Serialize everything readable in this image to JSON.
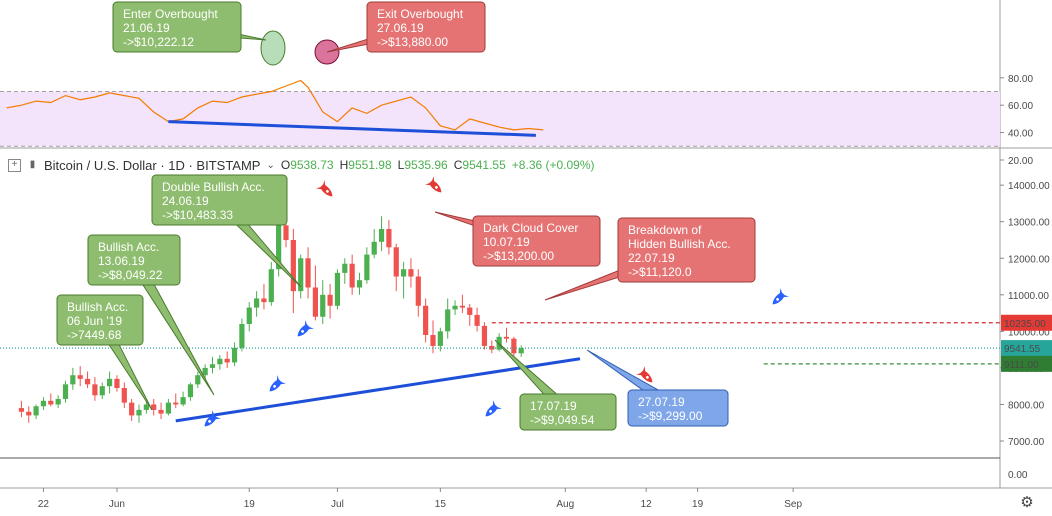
{
  "header": {
    "symbol": "Bitcoin / U.S. Dollar · 1D · BITSTAMP",
    "dropdown_icon": "chevron-down-icon",
    "o_label": "O",
    "o": "9538.73",
    "h_label": "H",
    "h": "9551.98",
    "l_label": "L",
    "l": "9535.96",
    "c_label": "C",
    "c": "9541.55",
    "change": "+8.36 (+0.09%)"
  },
  "colors": {
    "up": "#4caf50",
    "down": "#ef5350",
    "trendline": "#1e4fd8",
    "rsi_line": "#f57c00",
    "rsi_band": "#f3e3fb",
    "green_box": "#8fbd6f",
    "red_box": "#e57373",
    "blue_box": "#7ea6e8"
  },
  "chart_data": [
    {
      "type": "line",
      "title": "",
      "ylim": [
        20,
        100
      ],
      "yticks": [
        "80.00",
        "60.00",
        "40.00",
        "20.00"
      ],
      "levels": [
        70,
        30
      ],
      "series": [
        {
          "x": [
            "05-17",
            "05-19",
            "05-21",
            "05-23",
            "05-25",
            "05-27",
            "05-29",
            "05-31",
            "06-02",
            "06-04",
            "06-06",
            "06-08",
            "06-10",
            "06-12",
            "06-14",
            "06-16",
            "06-18",
            "06-20",
            "06-22",
            "06-24",
            "06-26",
            "06-27",
            "06-29",
            "07-01",
            "07-03",
            "07-05",
            "07-07",
            "07-09",
            "07-11",
            "07-13",
            "07-15",
            "07-17",
            "07-19",
            "07-21",
            "07-23",
            "07-25",
            "07-27",
            "07-29"
          ],
          "values": [
            58,
            60,
            63,
            62,
            67,
            64,
            66,
            69,
            67,
            65,
            55,
            48,
            50,
            58,
            63,
            62,
            66,
            68,
            70,
            74,
            78,
            73,
            55,
            48,
            58,
            54,
            60,
            63,
            66,
            58,
            45,
            42,
            50,
            47,
            44,
            42,
            43,
            42
          ]
        }
      ],
      "trendline": [
        {
          "x": "06-08",
          "y": 48
        },
        {
          "x": "07-28",
          "y": 38
        }
      ],
      "annotations": [
        {
          "lines": [
            "Enter Overbought",
            "21.06.19",
            "->$10,222.12"
          ],
          "color": "green"
        },
        {
          "lines": [
            "Exit Overbought",
            "27.06.19",
            "->$13,880.00"
          ],
          "color": "red"
        }
      ]
    },
    {
      "type": "candlestick",
      "title": "",
      "ylim": [
        6500,
        14500
      ],
      "yticks": [
        "14000.00",
        "13000.00",
        "12000.00",
        "11000.00",
        "10000.00",
        "9000.00",
        "8000.00",
        "7000.00"
      ],
      "xticks": [
        "22",
        "Jun",
        "19",
        "Jul",
        "15",
        "Aug",
        "12",
        "19",
        "Sep"
      ],
      "zero_tick": "0.00",
      "candles": [
        [
          7900,
          8100,
          7650,
          7800
        ],
        [
          7800,
          7950,
          7500,
          7700
        ],
        [
          7700,
          8000,
          7600,
          7950
        ],
        [
          7950,
          8200,
          7850,
          8100
        ],
        [
          8100,
          8300,
          7950,
          8000
        ],
        [
          8000,
          8250,
          7900,
          8150
        ],
        [
          8150,
          8650,
          8050,
          8550
        ],
        [
          8550,
          9000,
          8400,
          8800
        ],
        [
          8800,
          9050,
          8500,
          8700
        ],
        [
          8700,
          8900,
          8450,
          8550
        ],
        [
          8550,
          8750,
          8100,
          8250
        ],
        [
          8250,
          8600,
          8150,
          8500
        ],
        [
          8500,
          8900,
          8300,
          8700
        ],
        [
          8700,
          8800,
          8350,
          8450
        ],
        [
          8450,
          8600,
          7900,
          8050
        ],
        [
          8050,
          8150,
          7550,
          7700
        ],
        [
          7700,
          8000,
          7500,
          7850
        ],
        [
          7850,
          8100,
          7750,
          8000
        ],
        [
          8000,
          8150,
          7700,
          7850
        ],
        [
          7850,
          8050,
          7600,
          7750
        ],
        [
          7750,
          8150,
          7700,
          8050
        ],
        [
          8050,
          8300,
          7900,
          8000
        ],
        [
          8000,
          8350,
          7950,
          8200
        ],
        [
          8200,
          8600,
          8100,
          8550
        ],
        [
          8550,
          8900,
          8450,
          8800
        ],
        [
          8800,
          9100,
          8650,
          9000
        ],
        [
          9000,
          9300,
          8850,
          9100
        ],
        [
          9100,
          9350,
          8950,
          9250
        ],
        [
          9250,
          9450,
          9000,
          9150
        ],
        [
          9150,
          9700,
          9050,
          9550
        ],
        [
          9550,
          10350,
          9450,
          10200
        ],
        [
          10200,
          10800,
          10000,
          10650
        ],
        [
          10650,
          11100,
          10400,
          10900
        ],
        [
          10900,
          11300,
          10600,
          10800
        ],
        [
          10800,
          11900,
          10700,
          11700
        ],
        [
          11700,
          13200,
          11500,
          12900
        ],
        [
          12900,
          13900,
          12300,
          12500
        ],
        [
          12500,
          12800,
          10500,
          11100
        ],
        [
          11100,
          12100,
          10900,
          12000
        ],
        [
          12000,
          12300,
          10900,
          11200
        ],
        [
          11200,
          11800,
          10300,
          10400
        ],
        [
          10400,
          11400,
          10200,
          11000
        ],
        [
          11000,
          11300,
          10350,
          10700
        ],
        [
          10700,
          11700,
          10600,
          11600
        ],
        [
          11600,
          12000,
          11300,
          11850
        ],
        [
          11850,
          12100,
          11000,
          11200
        ],
        [
          11200,
          11600,
          11000,
          11400
        ],
        [
          11400,
          12300,
          11300,
          12100
        ],
        [
          12100,
          12800,
          12000,
          12450
        ],
        [
          12450,
          13150,
          12200,
          12800
        ],
        [
          12800,
          13050,
          12100,
          12300
        ],
        [
          12300,
          12400,
          11100,
          11500
        ],
        [
          11500,
          11900,
          10900,
          11700
        ],
        [
          11700,
          12000,
          11200,
          11500
        ],
        [
          11500,
          11700,
          10400,
          10700
        ],
        [
          10700,
          10900,
          9700,
          9900
        ],
        [
          9900,
          10300,
          9400,
          9600
        ],
        [
          9600,
          10100,
          9450,
          10000
        ],
        [
          10000,
          10900,
          9800,
          10600
        ],
        [
          10600,
          10850,
          10450,
          10700
        ],
        [
          10700,
          11000,
          10500,
          10650
        ],
        [
          10650,
          10750,
          10150,
          10450
        ],
        [
          10450,
          10650,
          10000,
          10150
        ],
        [
          10150,
          10250,
          9500,
          9600
        ],
        [
          9600,
          9750,
          9400,
          9500
        ],
        [
          9500,
          9950,
          9450,
          9850
        ],
        [
          9850,
          10100,
          9700,
          9800
        ],
        [
          9800,
          9850,
          9250,
          9400
        ],
        [
          9400,
          9620,
          9300,
          9540
        ]
      ],
      "levels": [
        {
          "value": 10235,
          "label": "10235.00",
          "style": "red-dashed"
        },
        {
          "value": 9541.55,
          "label": "9541.55",
          "style": "teal-dotted"
        },
        {
          "value": 9111,
          "label": "9111.00",
          "style": "green-dashed"
        }
      ],
      "trendline": [
        {
          "x": "06-09",
          "y": 7550
        },
        {
          "x": "08-03",
          "y": 9250
        }
      ],
      "annotations": [
        {
          "lines": [
            "Double Bullish Acc.",
            "24.06.19",
            "->$10,483.33"
          ],
          "color": "green"
        },
        {
          "lines": [
            "Bullish Acc.",
            "13.06.19",
            "->$8,049.22"
          ],
          "color": "green"
        },
        {
          "lines": [
            "Bullish Acc.",
            "06 Jun '19",
            "->7449.68"
          ],
          "color": "green"
        },
        {
          "lines": [
            "Dark Cloud Cover",
            "10.07.19",
            "->$13,200.00"
          ],
          "color": "red"
        },
        {
          "lines": [
            "Breakdown of",
            "Hidden Bullish Acc.",
            "22.07.19",
            "->$11,120.0"
          ],
          "color": "red"
        },
        {
          "lines": [
            "17.07.19",
            "->$9,049.54"
          ],
          "color": "green"
        },
        {
          "lines": [
            "27.07.19",
            "->$9,299.00"
          ],
          "color": "blue"
        }
      ]
    }
  ],
  "footer": {
    "settings_icon": "gear-icon"
  }
}
